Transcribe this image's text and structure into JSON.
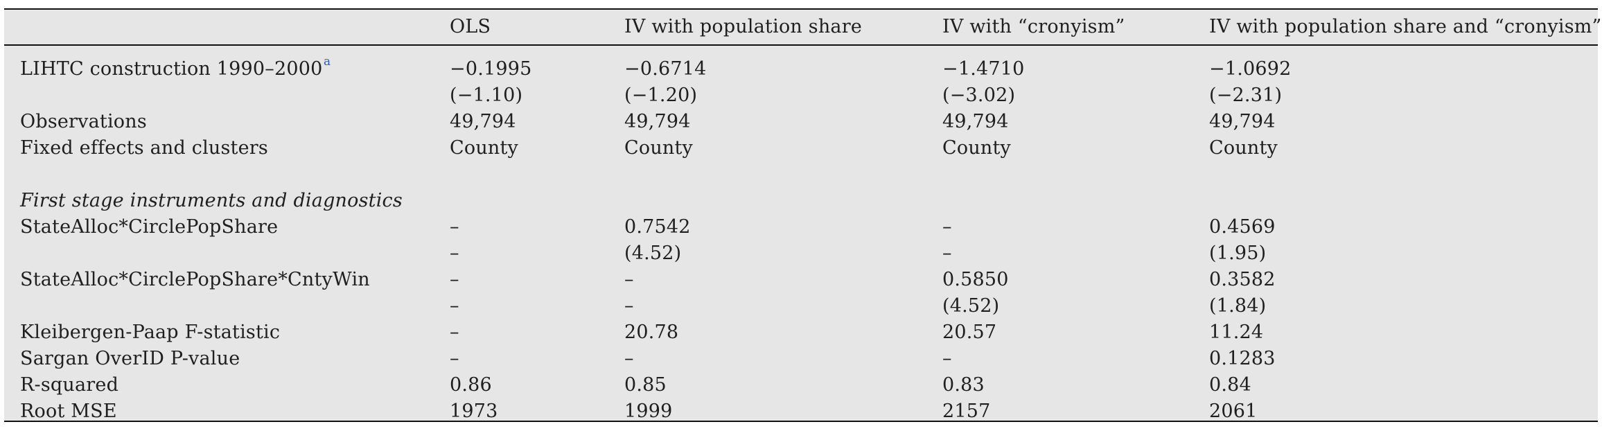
{
  "table": {
    "headers": [
      "",
      "OLS",
      "IV with population share",
      "IV with “cronyism”",
      "IV with population share and “cronyism”"
    ],
    "footnote_marker": "a",
    "rows": [
      {
        "label": "LIHTC construction 1990–2000",
        "cells": [
          "−0.1995",
          "−0.6714",
          "−1.4710",
          "−1.0692"
        ]
      },
      {
        "label": "",
        "cells": [
          "(−1.10)",
          "(−1.20)",
          "(−3.02)",
          "(−2.31)"
        ]
      },
      {
        "label": "Observations",
        "cells": [
          "49,794",
          "49,794",
          "49,794",
          "49,794"
        ]
      },
      {
        "label": "Fixed effects and clusters",
        "cells": [
          "County",
          "County",
          "County",
          "County"
        ]
      },
      {
        "label": "",
        "cells": [
          "",
          "",
          "",
          ""
        ]
      },
      {
        "label": "First stage instruments and diagnostics",
        "cells": [
          "",
          "",
          "",
          ""
        ]
      },
      {
        "label": "StateAlloc*CirclePopShare",
        "cells": [
          "–",
          "0.7542",
          "–",
          "0.4569"
        ]
      },
      {
        "label": "",
        "cells": [
          "–",
          "(4.52)",
          "–",
          "(1.95)"
        ]
      },
      {
        "label": "StateAlloc*CirclePopShare*CntyWin",
        "cells": [
          "–",
          "–",
          "0.5850",
          "0.3582"
        ]
      },
      {
        "label": "",
        "cells": [
          "–",
          "–",
          "(4.52)",
          "(1.84)"
        ]
      },
      {
        "label": "Kleibergen-Paap F-statistic",
        "cells": [
          "–",
          "20.78",
          "20.57",
          "11.24"
        ]
      },
      {
        "label": "Sargan OverID P-value",
        "cells": [
          "–",
          "–",
          "–",
          "0.1283"
        ]
      },
      {
        "label": "R-squared",
        "cells": [
          "0.86",
          "0.85",
          "0.83",
          "0.84"
        ]
      },
      {
        "label": "Root MSE",
        "cells": [
          "1973",
          "1999",
          "2157",
          "2061"
        ]
      }
    ]
  }
}
